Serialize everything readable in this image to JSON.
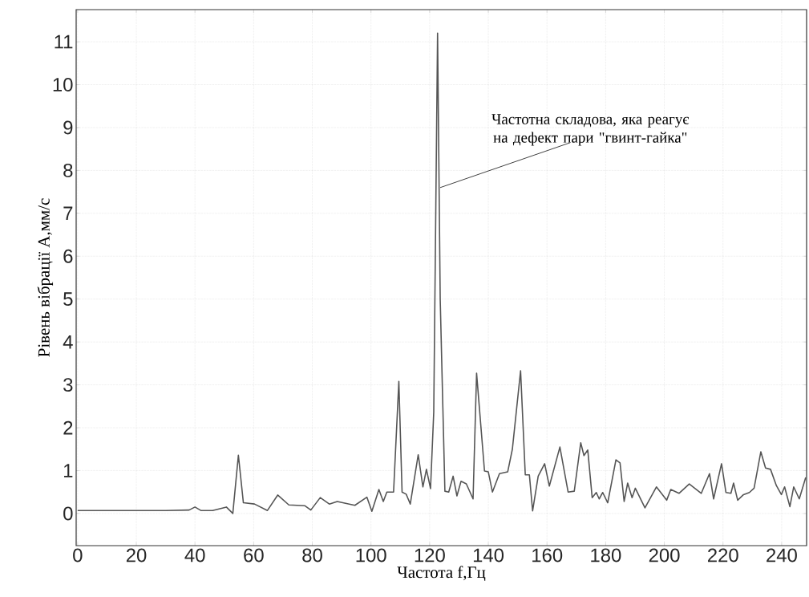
{
  "chart_data": {
    "type": "line",
    "xlabel": "Частота f,Гц",
    "ylabel": "Рівень вібрації А,мм/с",
    "annotations": [
      {
        "text": "Частотна складова, яка реагує на дефект пари \"гвинт-гайка\"",
        "x": 123.6,
        "y": 7.6
      }
    ],
    "xlim": [
      -0.5,
      248.5
    ],
    "ylim": [
      -0.75,
      11.75
    ],
    "xticks": [
      0,
      20,
      40,
      60,
      80,
      100,
      120,
      140,
      160,
      180,
      200,
      220,
      240
    ],
    "yticks": [
      0,
      1,
      2,
      3,
      4,
      5,
      6,
      7,
      8,
      9,
      10,
      11
    ],
    "grid": true,
    "line_style": "solid",
    "marker": "none",
    "series": [
      {
        "color": "#555555",
        "x": [
          0,
          10,
          20,
          30,
          38,
          40,
          42,
          46,
          50.7,
          52.9,
          54.8,
          56.5,
          60.3,
          64.7,
          68.2,
          72,
          77.5,
          79.5,
          82.7,
          85.8,
          88.5,
          94.5,
          98.6,
          100.3,
          102.7,
          104.2,
          105.4,
          107.7,
          109.5,
          110.6,
          112,
          113.4,
          116.1,
          117.7,
          118.9,
          120.3,
          121.4,
          122.7,
          123.6,
          125.2,
          126.5,
          128,
          129.3,
          130.7,
          132.5,
          134.8,
          136,
          138.7,
          140,
          141.4,
          143.8,
          146.6,
          148.2,
          151,
          152.6,
          154,
          155.1,
          157,
          159.2,
          160.8,
          164.4,
          167.2,
          169.3,
          171.5,
          172.6,
          173.9,
          175.4,
          176.8,
          177.8,
          179,
          180.7,
          183.5,
          184.9,
          186.3,
          187.5,
          189,
          190.1,
          193.4,
          197.3,
          200.8,
          202.2,
          205,
          208.5,
          212.6,
          215.4,
          216.8,
          219.5,
          221,
          222.7,
          223.6,
          225,
          227,
          229,
          230.6,
          232.9,
          234.5,
          236.2,
          238.2,
          239.9,
          241,
          242.8,
          244.1,
          246,
          248.2
        ],
        "values": [
          0.07,
          0.07,
          0.07,
          0.07,
          0.08,
          0.15,
          0.07,
          0.07,
          0.15,
          0.0,
          1.36,
          0.25,
          0.22,
          0.07,
          0.43,
          0.2,
          0.18,
          0.08,
          0.37,
          0.22,
          0.28,
          0.19,
          0.38,
          0.05,
          0.56,
          0.28,
          0.5,
          0.5,
          3.08,
          0.5,
          0.45,
          0.22,
          1.37,
          0.62,
          1.03,
          0.58,
          2.37,
          11.2,
          5,
          0.52,
          0.5,
          0.87,
          0.41,
          0.75,
          0.69,
          0.34,
          3.27,
          0.99,
          0.97,
          0.5,
          0.93,
          0.97,
          1.5,
          3.33,
          0.9,
          0.9,
          0.06,
          0.87,
          1.16,
          0.64,
          1.55,
          0.5,
          0.52,
          1.65,
          1.35,
          1.48,
          0.37,
          0.49,
          0.34,
          0.49,
          0.25,
          1.25,
          1.18,
          0.28,
          0.71,
          0.37,
          0.59,
          0.13,
          0.62,
          0.31,
          0.56,
          0.47,
          0.69,
          0.47,
          0.93,
          0.34,
          1.16,
          0.49,
          0.47,
          0.71,
          0.31,
          0.44,
          0.49,
          0.59,
          1.44,
          1.06,
          1.03,
          0.65,
          0.44,
          0.62,
          0.16,
          0.62,
          0.34,
          0.84
        ]
      }
    ]
  }
}
